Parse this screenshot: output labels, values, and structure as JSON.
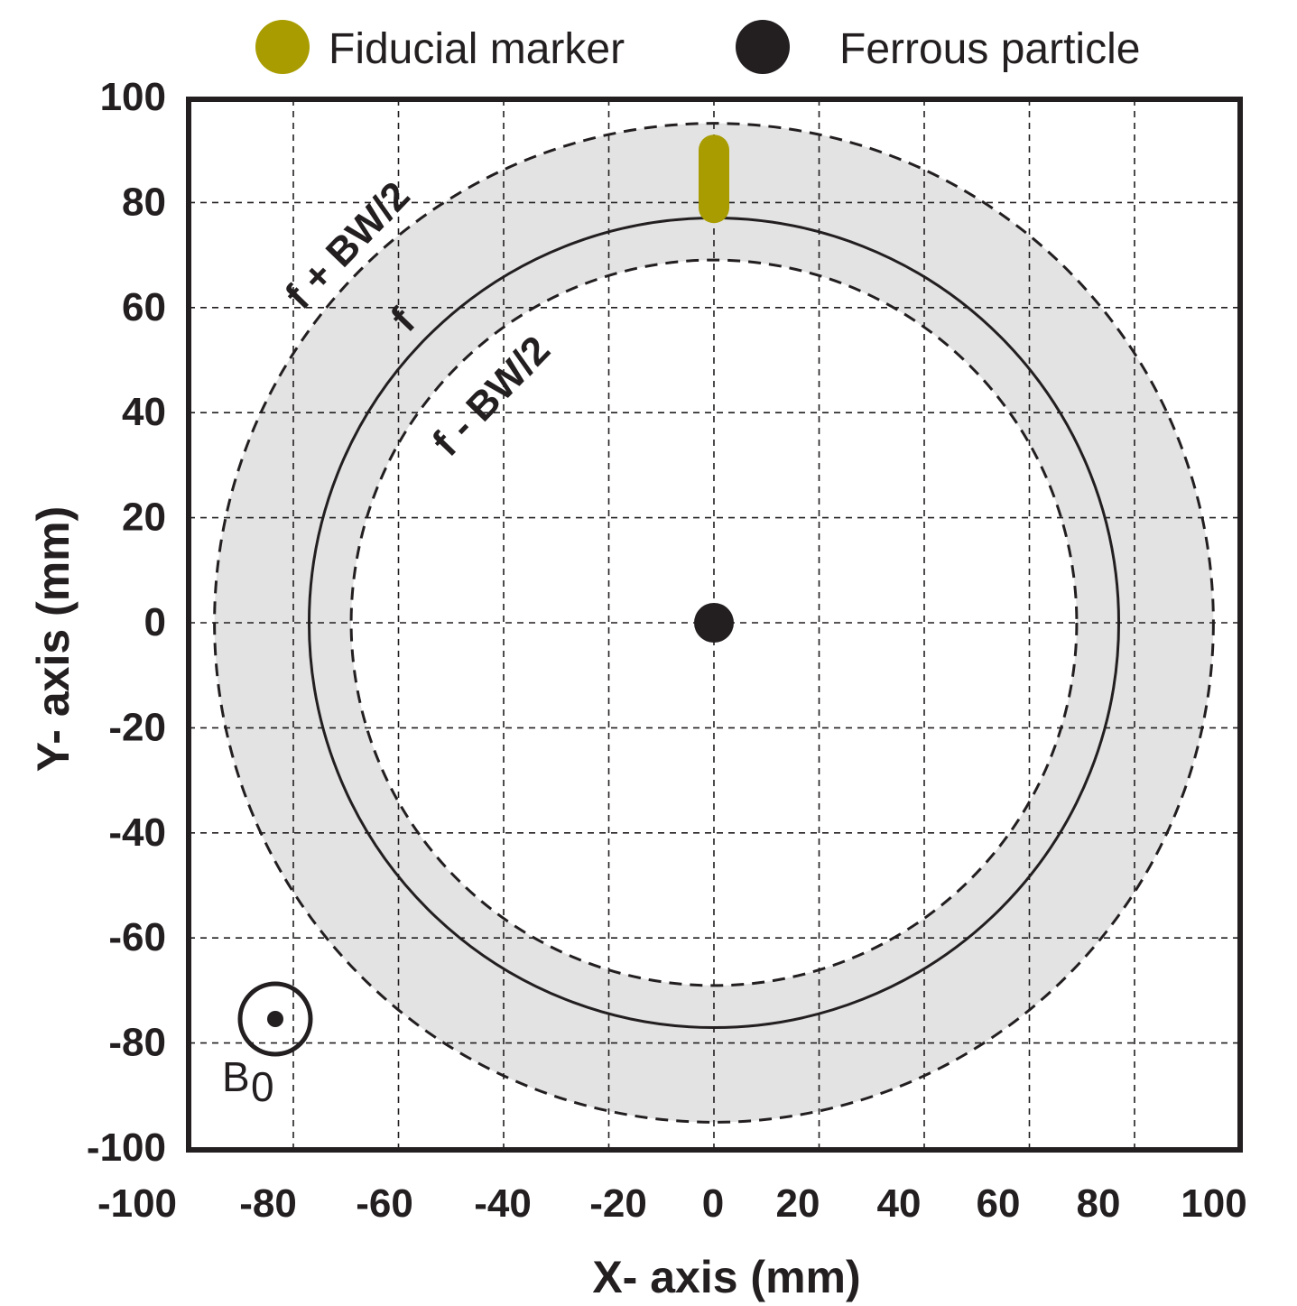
{
  "legend": {
    "fiducial_label": "Fiducial marker",
    "ferrous_label": "Ferrous particle"
  },
  "colors": {
    "fiducial": "#a89c00",
    "ferrous": "#231f20",
    "band_fill": "#e3e3e3",
    "frame": "#231f20",
    "grid": "#231f20"
  },
  "chart_data": {
    "type": "scatter",
    "xlabel": "X- axis (mm)",
    "ylabel": "Y- axis (mm)",
    "xlim": [
      -100,
      100
    ],
    "ylim": [
      -100,
      100
    ],
    "grid": true,
    "legend_position": "top",
    "x_ticks": [
      "-100",
      "-80",
      "-60",
      "-40",
      "-20",
      "0",
      "20",
      "40",
      "60",
      "80",
      "100"
    ],
    "y_ticks": [
      "100",
      "80",
      "60",
      "40",
      "20",
      "0",
      "-20",
      "-40",
      "-60",
      "-80",
      "-100"
    ],
    "ferrous_particle": {
      "x": 0,
      "y": 0
    },
    "fiducial_marker": {
      "x": 0,
      "y_start": 79,
      "y_end": 90
    },
    "circles": {
      "f_radius": 77,
      "f_plus_radius": 95,
      "f_minus_radius": 69
    },
    "annotations": {
      "f_plus": "f + BW/2",
      "f": "f",
      "f_minus": "f - BW/2",
      "field_symbol": "B",
      "field_subscript": "0"
    }
  }
}
